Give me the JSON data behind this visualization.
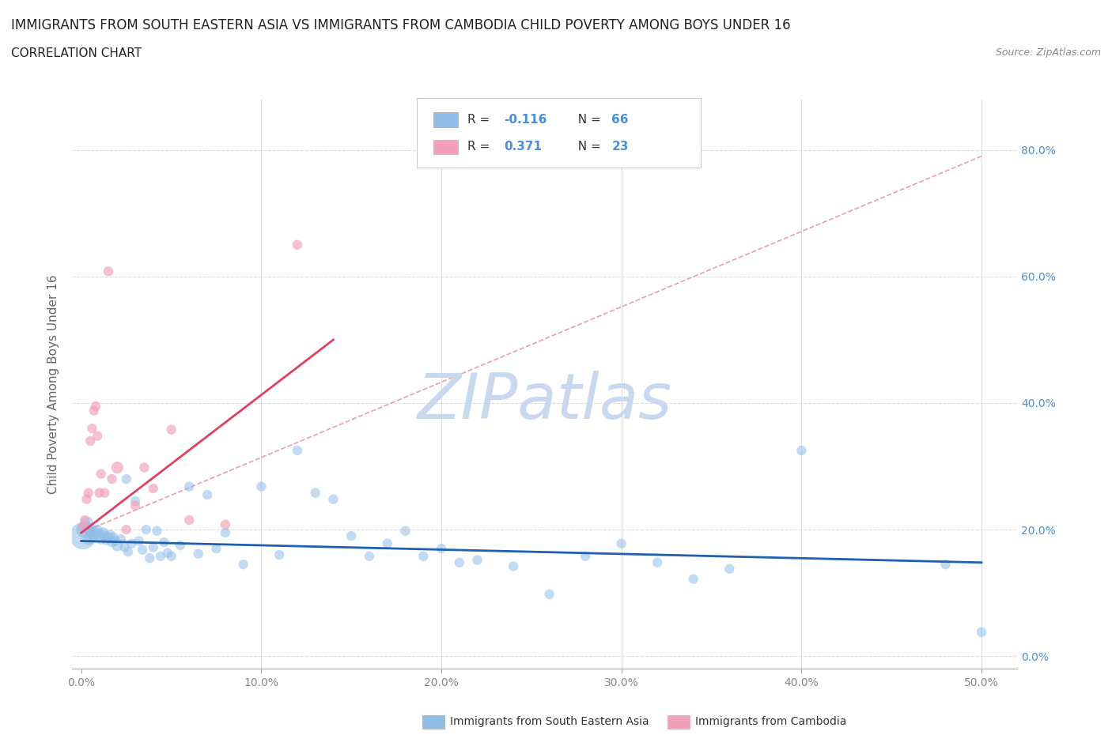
{
  "title": "IMMIGRANTS FROM SOUTH EASTERN ASIA VS IMMIGRANTS FROM CAMBODIA CHILD POVERTY AMONG BOYS UNDER 16",
  "subtitle": "CORRELATION CHART",
  "source": "Source: ZipAtlas.com",
  "ylabel": "Child Poverty Among Boys Under 16",
  "xlim": [
    -0.005,
    0.52
  ],
  "ylim": [
    -0.02,
    0.88
  ],
  "xticks": [
    0.0,
    0.1,
    0.2,
    0.3,
    0.4,
    0.5
  ],
  "xticklabels": [
    "0.0%",
    "10.0%",
    "20.0%",
    "30.0%",
    "40.0%",
    "50.0%"
  ],
  "yticks": [
    0.0,
    0.2,
    0.4,
    0.6,
    0.8
  ],
  "yticklabels": [
    "0.0%",
    "20.0%",
    "40.0%",
    "60.0%",
    "80.0%"
  ],
  "watermark_text": "ZIPatlas",
  "watermark_color": "#c8d8ee",
  "blue_color": "#90bce8",
  "blue_edge_color": "#90bce8",
  "pink_color": "#f0a0b8",
  "pink_edge_color": "#f0a0b8",
  "blue_line_color": "#2060b0",
  "pink_line_color": "#e04060",
  "dashed_line_color": "#e8a0b0",
  "tick_color_right": "#4a90d8",
  "tick_color_bottom": "#888888",
  "blue_scatter_x": [
    0.001,
    0.002,
    0.003,
    0.004,
    0.005,
    0.006,
    0.007,
    0.008,
    0.009,
    0.01,
    0.011,
    0.012,
    0.013,
    0.014,
    0.015,
    0.016,
    0.017,
    0.018,
    0.019,
    0.02,
    0.022,
    0.024,
    0.025,
    0.026,
    0.028,
    0.03,
    0.032,
    0.034,
    0.036,
    0.038,
    0.04,
    0.042,
    0.044,
    0.046,
    0.048,
    0.05,
    0.055,
    0.06,
    0.065,
    0.07,
    0.075,
    0.08,
    0.09,
    0.1,
    0.11,
    0.12,
    0.13,
    0.14,
    0.15,
    0.16,
    0.17,
    0.18,
    0.19,
    0.2,
    0.21,
    0.22,
    0.24,
    0.26,
    0.28,
    0.3,
    0.32,
    0.34,
    0.36,
    0.4,
    0.48,
    0.5
  ],
  "blue_scatter_y": [
    0.19,
    0.2,
    0.21,
    0.185,
    0.195,
    0.2,
    0.188,
    0.195,
    0.2,
    0.192,
    0.185,
    0.195,
    0.19,
    0.183,
    0.188,
    0.192,
    0.18,
    0.188,
    0.182,
    0.175,
    0.185,
    0.172,
    0.28,
    0.165,
    0.178,
    0.245,
    0.182,
    0.168,
    0.2,
    0.155,
    0.172,
    0.198,
    0.158,
    0.18,
    0.163,
    0.158,
    0.175,
    0.268,
    0.162,
    0.255,
    0.17,
    0.195,
    0.145,
    0.268,
    0.16,
    0.325,
    0.258,
    0.248,
    0.19,
    0.158,
    0.178,
    0.198,
    0.158,
    0.17,
    0.148,
    0.152,
    0.142,
    0.098,
    0.158,
    0.178,
    0.148,
    0.122,
    0.138,
    0.325,
    0.145,
    0.038
  ],
  "blue_scatter_sizes": [
    600,
    250,
    150,
    120,
    100,
    90,
    85,
    90,
    85,
    120,
    90,
    100,
    90,
    80,
    95,
    80,
    80,
    80,
    80,
    110,
    80,
    80,
    80,
    80,
    80,
    80,
    80,
    80,
    80,
    80,
    80,
    80,
    80,
    80,
    80,
    80,
    80,
    80,
    80,
    80,
    80,
    80,
    80,
    80,
    80,
    80,
    80,
    80,
    80,
    80,
    80,
    80,
    80,
    80,
    80,
    80,
    80,
    80,
    80,
    80,
    80,
    80,
    80,
    80,
    80,
    80
  ],
  "pink_scatter_x": [
    0.001,
    0.002,
    0.003,
    0.004,
    0.005,
    0.006,
    0.007,
    0.008,
    0.009,
    0.01,
    0.011,
    0.013,
    0.015,
    0.017,
    0.02,
    0.025,
    0.03,
    0.035,
    0.04,
    0.05,
    0.06,
    0.08,
    0.12
  ],
  "pink_scatter_y": [
    0.205,
    0.215,
    0.248,
    0.258,
    0.34,
    0.36,
    0.388,
    0.395,
    0.348,
    0.258,
    0.288,
    0.258,
    0.608,
    0.28,
    0.298,
    0.2,
    0.238,
    0.298,
    0.265,
    0.358,
    0.215,
    0.208,
    0.65
  ],
  "pink_scatter_sizes": [
    80,
    80,
    80,
    80,
    80,
    80,
    80,
    80,
    80,
    80,
    80,
    80,
    80,
    80,
    120,
    80,
    80,
    80,
    80,
    80,
    80,
    80,
    80
  ],
  "blue_trend_x": [
    0.0,
    0.5
  ],
  "blue_trend_y": [
    0.182,
    0.148
  ],
  "pink_trend_x": [
    0.0,
    0.14
  ],
  "pink_trend_y": [
    0.195,
    0.5
  ],
  "dashed_trend_x": [
    0.0,
    0.5
  ],
  "dashed_trend_y": [
    0.195,
    0.79
  ],
  "legend_labels": [
    "Immigrants from South Eastern Asia",
    "Immigrants from Cambodia"
  ],
  "title_fontsize": 12,
  "subtitle_fontsize": 11,
  "tick_fontsize": 10,
  "axis_label_fontsize": 11
}
